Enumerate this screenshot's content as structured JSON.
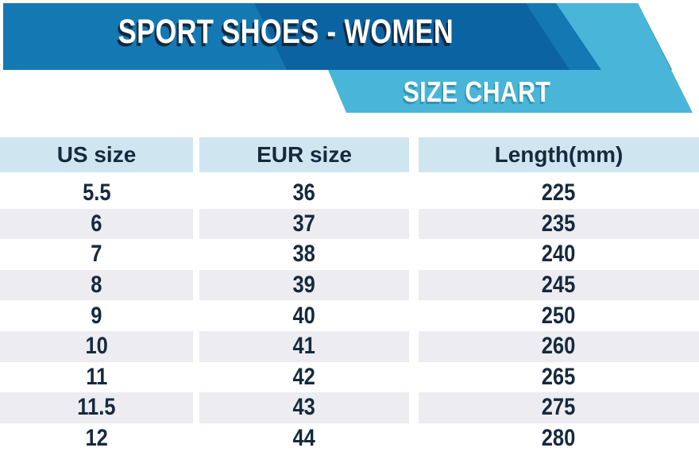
{
  "header": {
    "title": "SPORT SHOES - WOMEN",
    "ribbon_label": "SIZE CHART"
  },
  "colors": {
    "band_blue": "#1478b3",
    "band_dark": "#0c63a2",
    "ribbon_cyan": "#49b5d9",
    "title_shadow": "#122a3f",
    "header_bg": "#cfe6f1",
    "stripe_bg": "#ececf1",
    "table_text": "#16293e",
    "page_bg": "#ffffff"
  },
  "table": {
    "columns": [
      "US size",
      "EUR size",
      "Length(mm)"
    ],
    "rows": [
      [
        "5.5",
        "36",
        "225"
      ],
      [
        "6",
        "37",
        "235"
      ],
      [
        "7",
        "38",
        "240"
      ],
      [
        "8",
        "39",
        "245"
      ],
      [
        "9",
        "40",
        "250"
      ],
      [
        "10",
        "41",
        "260"
      ],
      [
        "11",
        "42",
        "265"
      ],
      [
        "11.5",
        "43",
        "275"
      ],
      [
        "12",
        "44",
        "280"
      ]
    ]
  },
  "chart_data": {
    "type": "table",
    "title": "SIZE CHART",
    "subtitle": "SPORT SHOES - WOMEN",
    "columns": [
      "US size",
      "EUR size",
      "Length(mm)"
    ],
    "rows": [
      [
        "5.5",
        "36",
        "225"
      ],
      [
        "6",
        "37",
        "235"
      ],
      [
        "7",
        "38",
        "240"
      ],
      [
        "8",
        "39",
        "245"
      ],
      [
        "9",
        "40",
        "250"
      ],
      [
        "10",
        "41",
        "260"
      ],
      [
        "11",
        "42",
        "265"
      ],
      [
        "11.5",
        "43",
        "275"
      ],
      [
        "12",
        "44",
        "280"
      ]
    ],
    "layout": {
      "stripe_alternate_rows": true,
      "header_fill": "#cfe6f1",
      "stripe_fill": "#ececf1"
    }
  }
}
